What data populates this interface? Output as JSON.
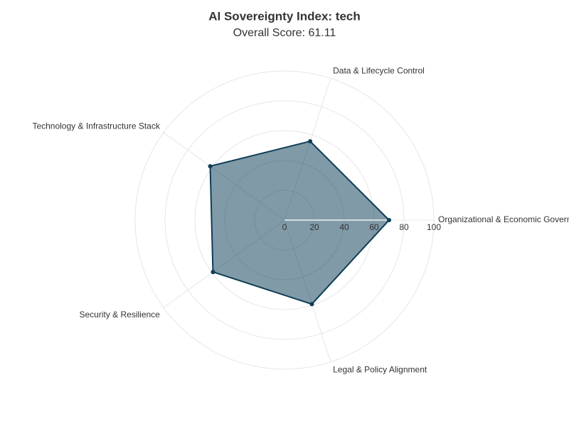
{
  "chart_data": {
    "type": "radar",
    "title": "AI Sovereignty Index: tech",
    "subtitle": "Overall Score: 61.11",
    "categories": [
      "Organizational & Economic Governance",
      "Data & Lifecycle Control",
      "Technology & Infrastructure Stack",
      "Security & Resilience",
      "Legal & Policy Alignment"
    ],
    "values": [
      70,
      55.6,
      61.5,
      59.2,
      59.25
    ],
    "color": "#0d3d56",
    "rlim": [
      0,
      100
    ],
    "rticks": [
      0,
      20,
      40,
      60,
      80,
      100
    ],
    "grid": true
  }
}
